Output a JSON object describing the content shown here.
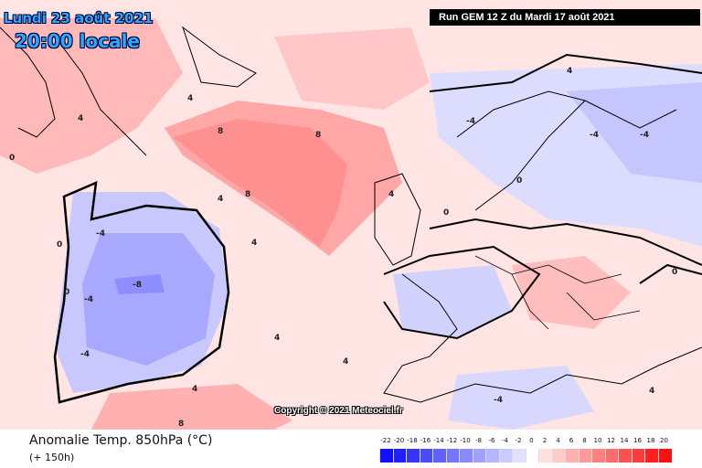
{
  "header": {
    "date": "Lundi 23 août 2021",
    "time": "20:00 locale",
    "run": "Run GEM 12 Z du Mardi 17 août 2021"
  },
  "copyright": "Copyright © 2021 Meteociel.fr",
  "footer": {
    "variable": "Anomalie Temp. 850hPa (°C)",
    "lead": "(+ 150h)"
  },
  "legend": {
    "ticks": [
      "-22",
      "-20",
      "-18",
      "-16",
      "-14",
      "-12",
      "-10",
      "-8",
      "-6",
      "-4",
      "-2",
      "0",
      "2",
      "4",
      "6",
      "8",
      "10",
      "12",
      "14",
      "16",
      "18",
      "20"
    ],
    "colors": [
      "#1010ff",
      "#2020ff",
      "#3535ff",
      "#4a4aff",
      "#6060ff",
      "#7575ff",
      "#8a8aff",
      "#a0a0ff",
      "#b5b5ff",
      "#cacaff",
      "#e0e0ff",
      "#ffffff",
      "#ffe0e0",
      "#ffcaca",
      "#ffb0b0",
      "#ff9a9a",
      "#ff8080",
      "#ff6a6a",
      "#ff5050",
      "#ff3a3a",
      "#ff2020",
      "#ff1010"
    ]
  },
  "map_labels": [
    "-4",
    "-4",
    "-4",
    "-4",
    "-4",
    "-4",
    "-4",
    "-8",
    "0",
    "0",
    "0",
    "0",
    "0",
    "0",
    "4",
    "4",
    "4",
    "4",
    "4",
    "4",
    "4",
    "4",
    "4",
    "4",
    "8",
    "8",
    "8",
    "8"
  ]
}
